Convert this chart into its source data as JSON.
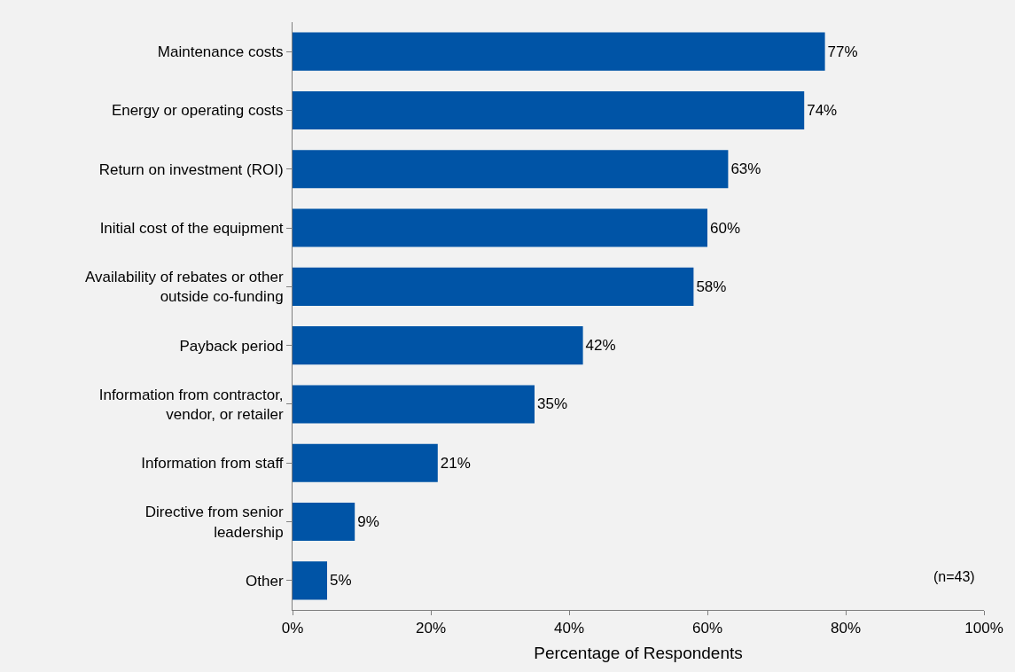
{
  "chart_data": {
    "type": "bar",
    "orientation": "horizontal",
    "xlabel": "Percentage of Respondents",
    "categories": [
      "Maintenance costs",
      "Energy or operating costs",
      "Return on investment (ROI)",
      "Initial cost of the equipment",
      "Availability of rebates or other\noutside co-funding",
      "Payback period",
      "Information from contractor,\nvendor, or retailer",
      "Information from staff",
      "Directive from senior\nleadership",
      "Other"
    ],
    "values": [
      77,
      74,
      63,
      60,
      58,
      42,
      35,
      21,
      9,
      5
    ],
    "value_labels": [
      "77%",
      "74%",
      "63%",
      "60%",
      "58%",
      "42%",
      "35%",
      "21%",
      "9%",
      "5%"
    ],
    "color": "#0054a6",
    "xlim": [
      0,
      100
    ],
    "xticks": [
      {
        "value": 0,
        "label": "0%"
      },
      {
        "value": 20,
        "label": "20%"
      },
      {
        "value": 40,
        "label": "40%"
      },
      {
        "value": 60,
        "label": "60%"
      },
      {
        "value": 80,
        "label": "80%"
      },
      {
        "value": 100,
        "label": "100%"
      }
    ],
    "annotations": [
      "(n=43)"
    ],
    "grid": false,
    "legend": false
  }
}
